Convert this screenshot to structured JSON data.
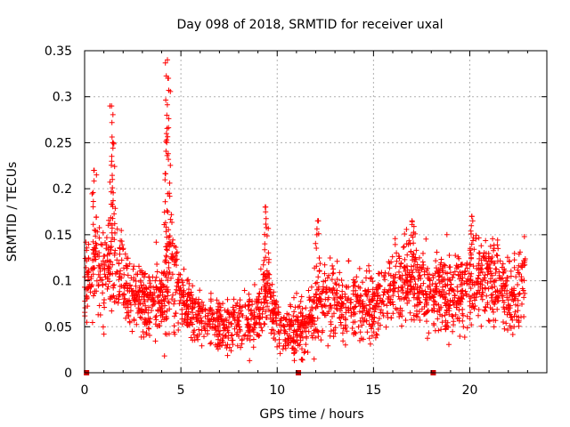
{
  "chart_data": {
    "type": "scatter",
    "title": "Day 098 of 2018, SRMTID for receiver uxal",
    "xlabel": "GPS time / hours",
    "ylabel": "SRMTID / TECUs",
    "xlim": [
      0,
      24
    ],
    "ylim": [
      0,
      0.35
    ],
    "x_ticks": [
      0,
      5,
      10,
      15,
      20
    ],
    "y_ticks": [
      0,
      0.05,
      0.1,
      0.15,
      0.2,
      0.25,
      0.3,
      0.35
    ],
    "x_tick_labels": [
      "0",
      "5",
      "10",
      "15",
      "20"
    ],
    "y_tick_labels": [
      "0",
      "0.05",
      "0.1",
      "0.15",
      "0.2",
      "0.25",
      "0.3",
      "0.35"
    ],
    "grid": true,
    "marker": "+",
    "color": "#ff0000",
    "data_span": [
      0,
      22.9
    ],
    "profile": {
      "x": [
        0,
        0.5,
        1.0,
        1.5,
        2.0,
        2.5,
        3.0,
        3.5,
        4.0,
        4.5,
        5.0,
        5.5,
        6.0,
        6.5,
        7.0,
        7.5,
        8.0,
        8.5,
        9.0,
        9.5,
        10.0,
        10.5,
        11.0,
        11.5,
        12.0,
        12.5,
        13.0,
        13.5,
        14.0,
        14.5,
        15.0,
        15.5,
        16.0,
        16.5,
        17.0,
        17.5,
        18.0,
        18.5,
        19.0,
        19.5,
        20.0,
        20.5,
        21.0,
        21.5,
        22.0,
        22.5,
        22.9
      ],
      "mean": [
        0.1,
        0.11,
        0.11,
        0.12,
        0.1,
        0.08,
        0.08,
        0.075,
        0.085,
        0.12,
        0.08,
        0.07,
        0.06,
        0.055,
        0.05,
        0.05,
        0.05,
        0.055,
        0.06,
        0.1,
        0.055,
        0.05,
        0.05,
        0.05,
        0.07,
        0.08,
        0.075,
        0.07,
        0.07,
        0.07,
        0.07,
        0.08,
        0.09,
        0.1,
        0.1,
        0.09,
        0.085,
        0.085,
        0.09,
        0.09,
        0.095,
        0.11,
        0.1,
        0.095,
        0.08,
        0.09,
        0.12
      ],
      "spread": [
        0.03,
        0.03,
        0.04,
        0.05,
        0.03,
        0.025,
        0.025,
        0.025,
        0.03,
        0.05,
        0.025,
        0.02,
        0.02,
        0.02,
        0.02,
        0.02,
        0.02,
        0.02,
        0.02,
        0.03,
        0.02,
        0.02,
        0.02,
        0.02,
        0.025,
        0.03,
        0.03,
        0.025,
        0.025,
        0.025,
        0.025,
        0.03,
        0.03,
        0.03,
        0.03,
        0.03,
        0.03,
        0.03,
        0.03,
        0.03,
        0.03,
        0.035,
        0.03,
        0.03,
        0.025,
        0.03,
        0.03
      ]
    },
    "peaks": [
      {
        "x": 0.5,
        "y": 0.22
      },
      {
        "x": 1.4,
        "y": 0.29
      },
      {
        "x": 1.45,
        "y": 0.25
      },
      {
        "x": 4.3,
        "y": 0.34
      },
      {
        "x": 4.35,
        "y": 0.32
      },
      {
        "x": 4.25,
        "y": 0.26
      },
      {
        "x": 9.4,
        "y": 0.18
      },
      {
        "x": 12.1,
        "y": 0.165
      },
      {
        "x": 17.0,
        "y": 0.165
      },
      {
        "x": 20.1,
        "y": 0.17
      }
    ],
    "baseline_markers_x": [
      0.1,
      11.1,
      18.1
    ]
  }
}
